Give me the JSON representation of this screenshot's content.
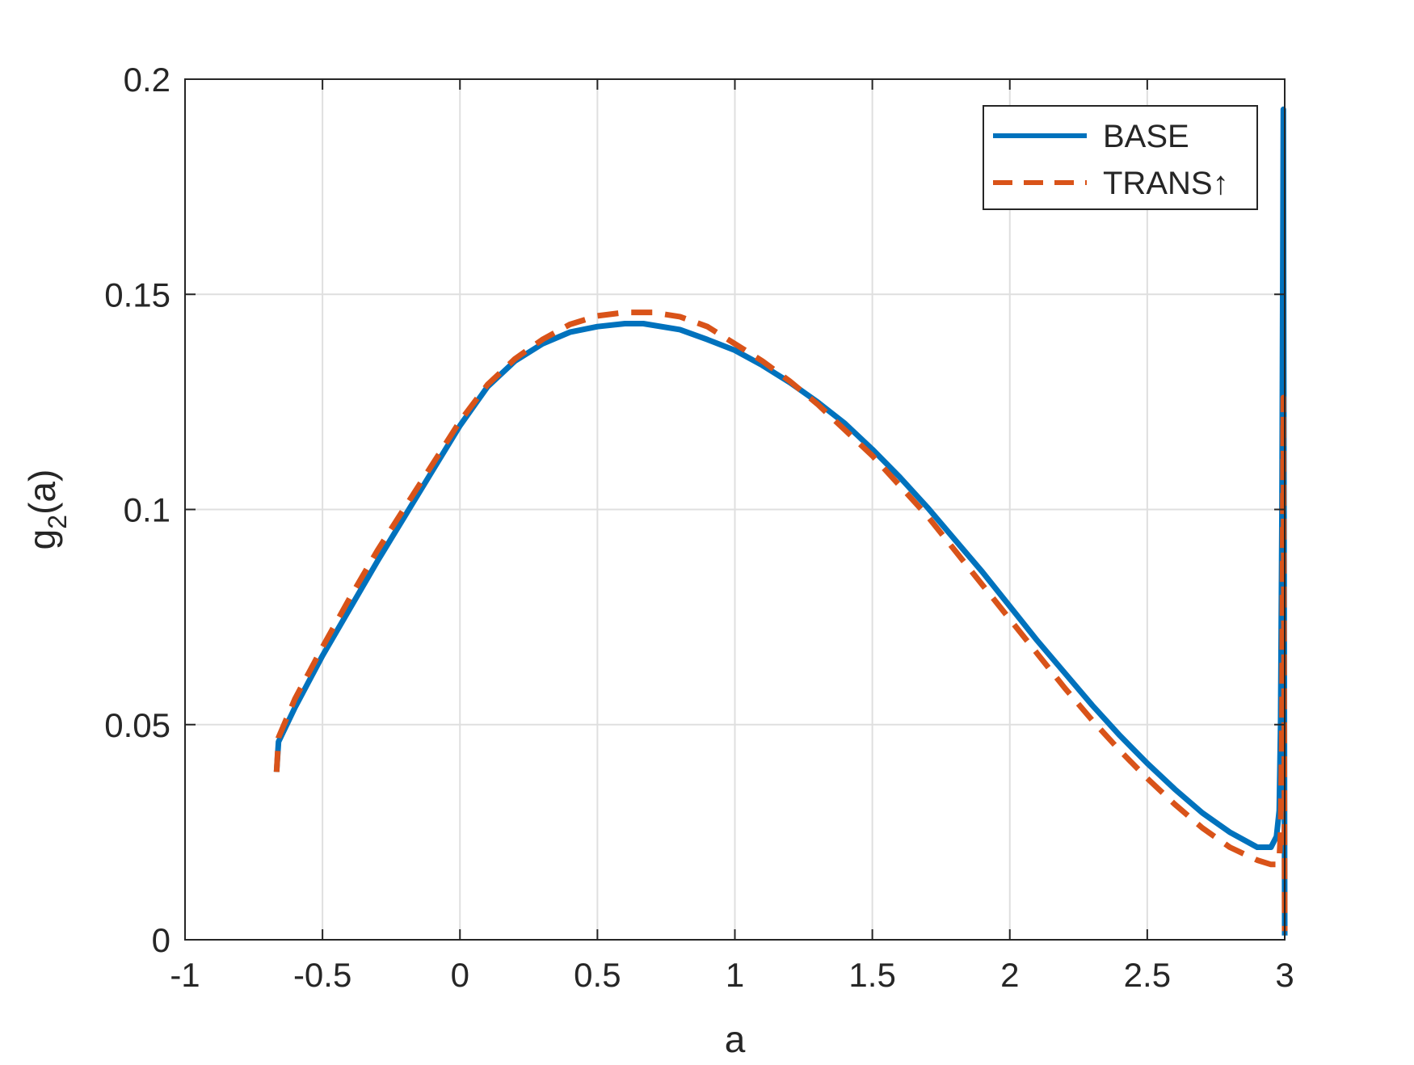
{
  "chart_data": {
    "type": "line",
    "title": "",
    "xlabel": "a",
    "ylabel_main": "g",
    "ylabel_sub": "2",
    "ylabel_rest": "(a)",
    "xlim": [
      -1,
      3
    ],
    "ylim": [
      0,
      0.2
    ],
    "x_ticks": [
      -1,
      -0.5,
      0,
      0.5,
      1,
      1.5,
      2,
      2.5,
      3
    ],
    "x_tick_labels": [
      "-1",
      "-0.5",
      "0",
      "0.5",
      "1",
      "1.5",
      "2",
      "2.5",
      "3"
    ],
    "y_ticks": [
      0,
      0.05,
      0.1,
      0.15,
      0.2
    ],
    "y_tick_labels": [
      "0",
      "0.05",
      "0.1",
      "0.15",
      "0.2"
    ],
    "grid": true,
    "legend_position": "top-right",
    "series": [
      {
        "name": "BASE",
        "color": "#0072BD",
        "style": "solid",
        "x": [
          -0.667,
          -0.66,
          -0.6,
          -0.5,
          -0.4,
          -0.3,
          -0.2,
          -0.1,
          0,
          0.1,
          0.2,
          0.3,
          0.4,
          0.5,
          0.6,
          0.667,
          0.8,
          0.9,
          1.0,
          1.1,
          1.2,
          1.3,
          1.4,
          1.5,
          1.6,
          1.7,
          1.8,
          1.9,
          2.0,
          2.1,
          2.2,
          2.3,
          2.4,
          2.5,
          2.6,
          2.7,
          2.8,
          2.9,
          2.95,
          2.97,
          2.98,
          2.985,
          2.99,
          2.995,
          3.0
        ],
        "y": [
          0.039,
          0.046,
          0.054,
          0.066,
          0.077,
          0.088,
          0.0985,
          0.109,
          0.1195,
          0.1285,
          0.1345,
          0.1385,
          0.1412,
          0.1425,
          0.1432,
          0.1432,
          0.1418,
          0.1395,
          0.137,
          0.1335,
          0.1295,
          0.125,
          0.12,
          0.114,
          0.1075,
          0.1005,
          0.093,
          0.0855,
          0.0775,
          0.0695,
          0.062,
          0.0545,
          0.0475,
          0.041,
          0.035,
          0.0295,
          0.025,
          0.0215,
          0.0215,
          0.024,
          0.03,
          0.05,
          0.1,
          0.193,
          0.001
        ]
      },
      {
        "name": "TRANS↑",
        "color": "#D95319",
        "style": "dashed",
        "x": [
          -0.667,
          -0.66,
          -0.6,
          -0.5,
          -0.4,
          -0.3,
          -0.2,
          -0.1,
          0,
          0.1,
          0.2,
          0.3,
          0.4,
          0.5,
          0.6,
          0.7,
          0.8,
          0.9,
          1.0,
          1.1,
          1.2,
          1.3,
          1.4,
          1.5,
          1.6,
          1.7,
          1.8,
          1.9,
          2.0,
          2.1,
          2.2,
          2.3,
          2.4,
          2.5,
          2.6,
          2.7,
          2.8,
          2.9,
          2.95,
          2.97,
          2.98,
          2.985,
          2.99,
          2.995,
          3.0
        ],
        "y": [
          0.039,
          0.047,
          0.056,
          0.068,
          0.0795,
          0.0905,
          0.1005,
          0.1105,
          0.1205,
          0.129,
          0.135,
          0.1395,
          0.143,
          0.145,
          0.1458,
          0.1458,
          0.1448,
          0.1425,
          0.1385,
          0.1345,
          0.1298,
          0.1245,
          0.1185,
          0.1125,
          0.1055,
          0.0985,
          0.0905,
          0.0825,
          0.0745,
          0.0665,
          0.0585,
          0.051,
          0.044,
          0.0375,
          0.0315,
          0.026,
          0.0215,
          0.0185,
          0.0175,
          0.0175,
          0.0185,
          0.025,
          0.05,
          0.126,
          0.002
        ]
      }
    ]
  }
}
